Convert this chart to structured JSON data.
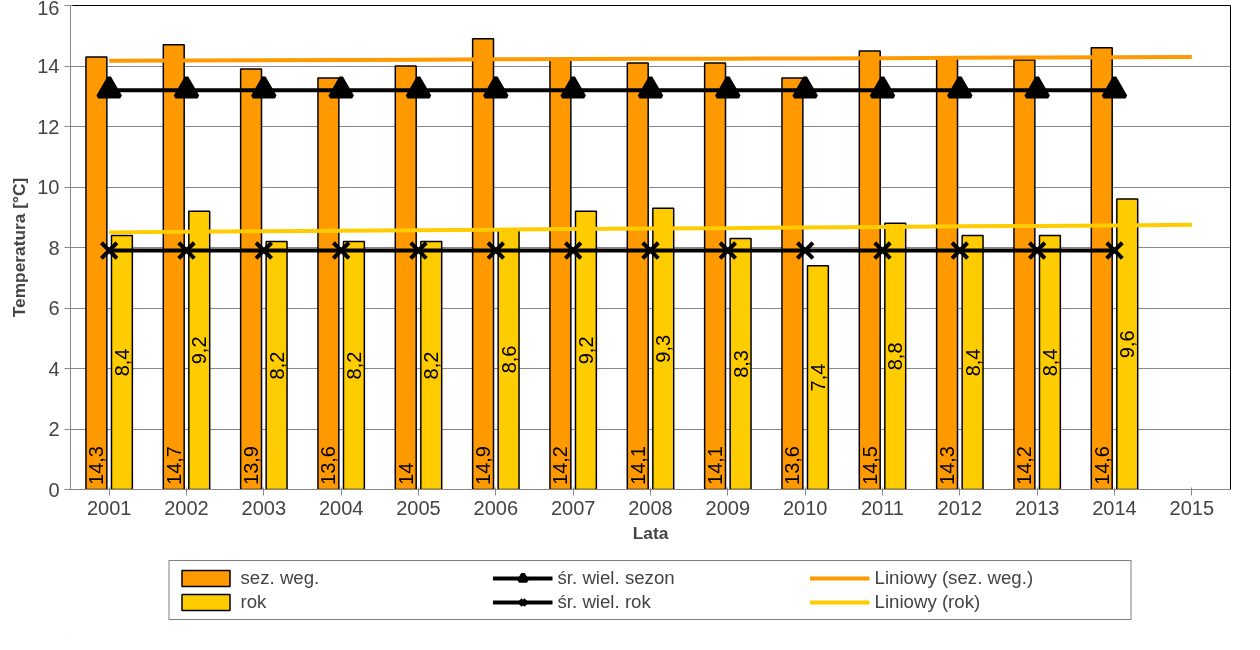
{
  "chart_data": {
    "type": "bar",
    "xlabel": "Lata",
    "ylabel": "Temperatura [°C]",
    "categories": [
      "2001",
      "2002",
      "2003",
      "2004",
      "2005",
      "2006",
      "2007",
      "2008",
      "2009",
      "2010",
      "2011",
      "2012",
      "2013",
      "2014",
      "2015"
    ],
    "ylim": [
      0,
      16
    ],
    "yticks": [
      0,
      2,
      4,
      6,
      8,
      10,
      12,
      14,
      16
    ],
    "grid": "y",
    "legend": "bottom",
    "series": [
      {
        "name": "sez. weg.",
        "color": "#ff9900",
        "values": [
          14.3,
          14.7,
          13.9,
          13.6,
          14,
          14.9,
          14.2,
          14.1,
          14.1,
          13.6,
          14.5,
          14.3,
          14.2,
          14.6,
          null
        ],
        "value_labels": [
          "14,3",
          "14,7",
          "13,9",
          "13,6",
          "14",
          "14,9",
          "14,2",
          "14,1",
          "14,1",
          "13,6",
          "14,5",
          "14,3",
          "14,2",
          "14,6",
          null
        ]
      },
      {
        "name": "rok",
        "color": "#ffcc00",
        "values": [
          8.4,
          9.2,
          8.2,
          8.2,
          8.2,
          8.6,
          9.2,
          9.3,
          8.3,
          7.4,
          8.8,
          8.4,
          8.4,
          9.6,
          null
        ],
        "value_labels": [
          "8,4",
          "9,2",
          "8,2",
          "8,2",
          "8,2",
          "8,6",
          "9,2",
          "9,3",
          "8,3",
          "7,4",
          "8,8",
          "8,4",
          "8,4",
          "9,6",
          null
        ]
      },
      {
        "name": "śr. wiel. sezon",
        "type": "line",
        "color": "#000000",
        "marker": "triangle",
        "values": [
          13.2,
          13.2,
          13.2,
          13.2,
          13.2,
          13.2,
          13.2,
          13.2,
          13.2,
          13.2,
          13.2,
          13.2,
          13.2,
          13.2,
          null
        ]
      },
      {
        "name": "śr. wiel. rok",
        "type": "line",
        "color": "#000000",
        "marker": "cross",
        "values": [
          7.9,
          7.9,
          7.9,
          7.9,
          7.9,
          7.9,
          7.9,
          7.9,
          7.9,
          7.9,
          7.9,
          7.9,
          7.9,
          7.9,
          null
        ]
      },
      {
        "name": "Liniowy (sez. weg.)",
        "type": "line",
        "color": "#ff9900",
        "marker": "none",
        "values": [
          14.17,
          14.18,
          14.19,
          14.2,
          14.21,
          14.22,
          14.23,
          14.24,
          14.24,
          14.25,
          14.26,
          14.27,
          14.28,
          14.29,
          14.3
        ]
      },
      {
        "name": "Liniowy (rok)",
        "type": "line",
        "color": "#ffcc00",
        "marker": "none",
        "values": [
          8.5,
          8.52,
          8.54,
          8.55,
          8.57,
          8.59,
          8.61,
          8.63,
          8.64,
          8.66,
          8.68,
          8.7,
          8.71,
          8.73,
          8.75
        ]
      }
    ]
  }
}
